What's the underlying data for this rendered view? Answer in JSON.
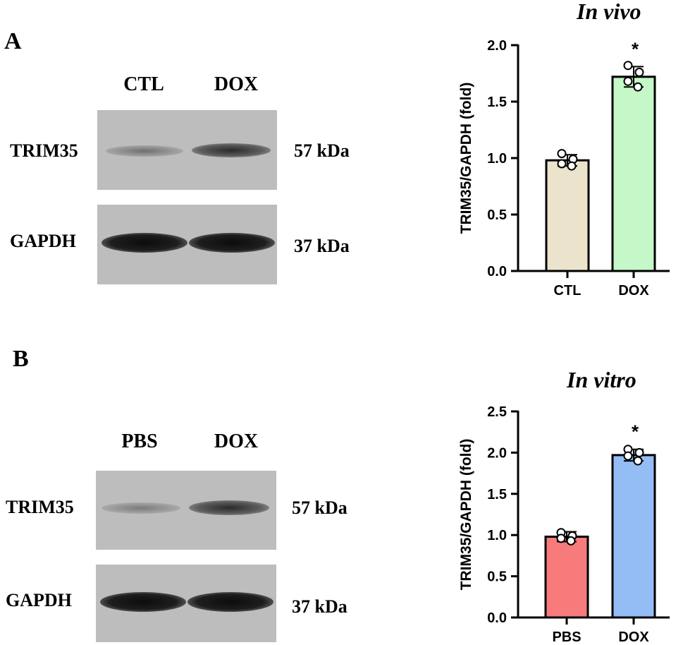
{
  "panels": [
    {
      "letter": "A",
      "lanes": [
        "CTL",
        "DOX"
      ],
      "rows": [
        {
          "protein": "TRIM35",
          "size": "57 kDa"
        },
        {
          "protein": "GAPDH",
          "size": "37 kDa"
        }
      ]
    },
    {
      "letter": "B",
      "lanes": [
        "PBS",
        "DOX"
      ],
      "rows": [
        {
          "protein": "TRIM35",
          "size": "57 kDa"
        },
        {
          "protein": "GAPDH",
          "size": "37 kDa"
        }
      ]
    }
  ],
  "chart_data": [
    {
      "type": "bar",
      "title": "In vivo",
      "ylabel": "TRIM35/GAPDH (fold)",
      "xlabel": "",
      "categories": [
        "CTL",
        "DOX"
      ],
      "values": [
        0.98,
        1.72
      ],
      "error": [
        0.05,
        0.09
      ],
      "points": [
        [
          1.04,
          0.99,
          0.95,
          0.93
        ],
        [
          1.82,
          1.76,
          1.68,
          1.63
        ]
      ],
      "significance": [
        "",
        "*"
      ],
      "colors": [
        "#ebe3cb",
        "#c5f7c8"
      ],
      "ylim": [
        0,
        2.0
      ],
      "yticks": [
        "0.0",
        "0.5",
        "1.0",
        "1.5",
        "2.0"
      ],
      "grid": false
    },
    {
      "type": "bar",
      "title": "In vitro",
      "ylabel": "TRIM35/GAPDH (fold)",
      "xlabel": "",
      "categories": [
        "PBS",
        "DOX"
      ],
      "values": [
        0.98,
        1.97
      ],
      "error": [
        0.06,
        0.07
      ],
      "points": [
        [
          1.03,
          0.99,
          0.96,
          0.93
        ],
        [
          2.04,
          2.0,
          1.96,
          1.9
        ]
      ],
      "significance": [
        "",
        "*"
      ],
      "colors": [
        "#f77b7b",
        "#94bdf6"
      ],
      "ylim": [
        0,
        2.5
      ],
      "yticks": [
        "0.0",
        "0.5",
        "1.0",
        "1.5",
        "2.0",
        "2.5"
      ],
      "grid": false
    }
  ]
}
